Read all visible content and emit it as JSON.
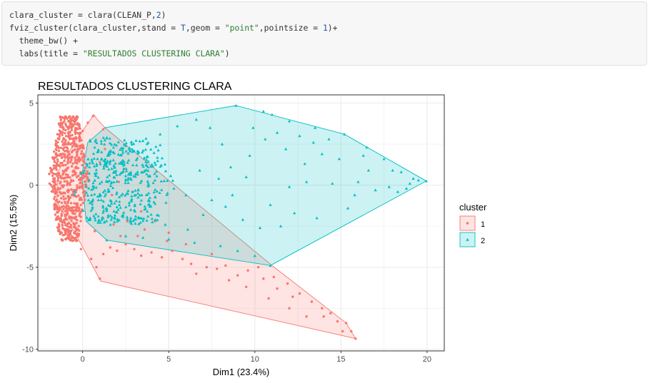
{
  "code": {
    "lines": [
      [
        {
          "t": "txt",
          "v": "clara_cluster = clara(CLEAN_P,"
        },
        {
          "t": "num",
          "v": "2"
        },
        {
          "t": "txt",
          "v": ")"
        }
      ],
      [
        {
          "t": "txt",
          "v": "fviz_cluster(clara_cluster,stand = "
        },
        {
          "t": "kw",
          "v": "T"
        },
        {
          "t": "txt",
          "v": ",geom = "
        },
        {
          "t": "str",
          "v": "\"point\""
        },
        {
          "t": "txt",
          "v": ",pointsize = "
        },
        {
          "t": "num",
          "v": "1"
        },
        {
          "t": "txt",
          "v": ")+"
        }
      ],
      [
        {
          "t": "txt",
          "v": "  theme_bw() +"
        }
      ],
      [
        {
          "t": "txt",
          "v": "  labs(title = "
        },
        {
          "t": "str",
          "v": "\"RESULTADOS CLUSTERING CLARA\""
        },
        {
          "t": "txt",
          "v": ")"
        }
      ]
    ]
  },
  "chart_data": {
    "type": "scatter",
    "title": "RESULTADOS CLUSTERING CLARA",
    "xlabel": "Dim1 (23.4%)",
    "ylabel": "Dim2 (15.5%)",
    "xlim": [
      -2.6,
      21.0
    ],
    "ylim": [
      -10.1,
      5.5
    ],
    "xticks": [
      0,
      5,
      10,
      15,
      20
    ],
    "yticks": [
      -10,
      -5,
      0,
      5
    ],
    "grid": true,
    "legend_title": "cluster",
    "legend_position": "right",
    "series": [
      {
        "name": "1",
        "color": "#F8766D",
        "fill": "#F8766D",
        "marker": "circle",
        "hull": [
          [
            0.65,
            4.3
          ],
          [
            0.85,
            4.0
          ],
          [
            1.3,
            3.5
          ],
          [
            11.0,
            -4.9
          ],
          [
            15.3,
            -8.4
          ],
          [
            15.85,
            -9.35
          ],
          [
            1.05,
            -5.85
          ],
          [
            -0.3,
            -3.2
          ],
          [
            -1.5,
            -1.0
          ],
          [
            -1.45,
            0.8
          ],
          [
            -0.5,
            2.55
          ]
        ],
        "points": [
          [
            0.6,
            4.2
          ],
          [
            0.3,
            3.8
          ],
          [
            0.0,
            3.3
          ],
          [
            -0.2,
            2.9
          ],
          [
            -0.5,
            2.5
          ],
          [
            1.2,
            3.4
          ],
          [
            -1.45,
            0.7
          ],
          [
            -1.5,
            -0.9
          ],
          [
            -0.3,
            -3.1
          ],
          [
            1.0,
            -5.7
          ],
          [
            0.5,
            -4.5
          ],
          [
            0.8,
            -5.0
          ],
          [
            1.2,
            -4.2
          ],
          [
            1.6,
            -3.8
          ],
          [
            2.0,
            -4.0
          ],
          [
            2.5,
            -3.6
          ],
          [
            3.0,
            -3.9
          ],
          [
            3.4,
            -4.3
          ],
          [
            4.0,
            -4.1
          ],
          [
            4.6,
            -4.4
          ],
          [
            5.2,
            -4.0
          ],
          [
            5.8,
            -4.5
          ],
          [
            6.3,
            -4.8
          ],
          [
            6.6,
            -5.4
          ],
          [
            7.2,
            -5.0
          ],
          [
            7.8,
            -5.1
          ],
          [
            8.3,
            -4.9
          ],
          [
            9.0,
            -5.5
          ],
          [
            9.6,
            -5.2
          ],
          [
            10.2,
            -5.0
          ],
          [
            10.5,
            -5.7
          ],
          [
            11.1,
            -5.6
          ],
          [
            11.3,
            -6.3
          ],
          [
            11.9,
            -6.0
          ],
          [
            12.2,
            -6.8
          ],
          [
            12.6,
            -6.6
          ],
          [
            13.3,
            -7.1
          ],
          [
            13.9,
            -7.5
          ],
          [
            14.0,
            -8.0
          ],
          [
            14.4,
            -7.8
          ],
          [
            14.8,
            -8.3
          ],
          [
            15.3,
            -8.4
          ],
          [
            15.6,
            -8.9
          ],
          [
            15.85,
            -9.35
          ],
          [
            15.1,
            -8.9
          ],
          [
            3.2,
            -3.1
          ],
          [
            6.0,
            -3.6
          ],
          [
            7.5,
            -4.2
          ],
          [
            2.2,
            -3.1
          ],
          [
            4.9,
            -3.4
          ],
          [
            1.8,
            -2.4
          ],
          [
            2.6,
            -2.2
          ],
          [
            3.6,
            -2.7
          ],
          [
            5.0,
            -2.9
          ],
          [
            1.4,
            -1.5
          ],
          [
            1.7,
            -0.6
          ],
          [
            2.1,
            0.2
          ],
          [
            1.0,
            1.4
          ],
          [
            1.3,
            2.2
          ],
          [
            2.4,
            1.0
          ],
          [
            2.9,
            -0.4
          ],
          [
            3.4,
            -1.6
          ],
          [
            4.2,
            -2.2
          ],
          [
            0.7,
            -2.8
          ],
          [
            -0.1,
            -3.9
          ],
          [
            9.5,
            -6.2
          ],
          [
            13.0,
            -8.0
          ],
          [
            12.0,
            -7.5
          ],
          [
            8.5,
            -5.8
          ],
          [
            10.8,
            -6.9
          ]
        ],
        "dense_region": {
          "x_center": -0.8,
          "y_top": 4.2,
          "y_bottom": -3.4
        }
      },
      {
        "name": "2",
        "color": "#00BFC4",
        "fill": "#00BFC4",
        "marker": "triangle",
        "hull": [
          [
            1.3,
            3.5
          ],
          [
            8.9,
            4.85
          ],
          [
            15.2,
            3.1
          ],
          [
            19.95,
            0.25
          ],
          [
            10.9,
            -4.9
          ],
          [
            1.4,
            -3.35
          ],
          [
            0.2,
            -2.2
          ],
          [
            -0.05,
            0.6
          ],
          [
            0.3,
            2.6
          ]
        ],
        "points": [
          [
            8.9,
            4.85
          ],
          [
            10.5,
            4.5
          ],
          [
            11.0,
            4.3
          ],
          [
            12.0,
            3.9
          ],
          [
            13.5,
            3.5
          ],
          [
            15.2,
            3.1
          ],
          [
            16.5,
            2.3
          ],
          [
            17.5,
            1.6
          ],
          [
            18.5,
            0.8
          ],
          [
            19.2,
            0.4
          ],
          [
            19.95,
            0.25
          ],
          [
            18.8,
            -0.2
          ],
          [
            18.3,
            -0.4
          ],
          [
            19.0,
            0.1
          ],
          [
            16.0,
            0.2
          ],
          [
            14.5,
            0.1
          ],
          [
            13.0,
            0.2
          ],
          [
            12.0,
            -0.1
          ],
          [
            11.5,
            -2.5
          ],
          [
            10.3,
            -2.6
          ],
          [
            9.3,
            -2.1
          ],
          [
            8.3,
            -1.3
          ],
          [
            7.5,
            -0.9
          ],
          [
            9.0,
            -4.0
          ],
          [
            10.0,
            -4.3
          ],
          [
            10.9,
            -4.9
          ],
          [
            8.0,
            -3.7
          ],
          [
            6.5,
            -3.5
          ],
          [
            5.0,
            -3.3
          ],
          [
            3.5,
            -3.2
          ],
          [
            2.5,
            -3.1
          ],
          [
            1.4,
            -3.35
          ],
          [
            7.0,
            -1.8
          ],
          [
            6.0,
            -0.6
          ],
          [
            8.6,
            1.1
          ],
          [
            9.7,
            1.8
          ],
          [
            10.6,
            2.8
          ],
          [
            11.8,
            2.2
          ],
          [
            12.9,
            1.3
          ],
          [
            13.9,
            1.9
          ],
          [
            14.9,
            1.6
          ],
          [
            16.6,
            0.9
          ],
          [
            17.8,
            -0.1
          ],
          [
            15.4,
            -1.4
          ],
          [
            13.6,
            -2.0
          ],
          [
            12.3,
            -1.7
          ],
          [
            10.9,
            -1.2
          ],
          [
            9.5,
            0.5
          ],
          [
            8.1,
            2.5
          ],
          [
            7.4,
            3.5
          ],
          [
            6.6,
            4.0
          ],
          [
            5.5,
            3.6
          ],
          [
            4.5,
            3.1
          ],
          [
            3.5,
            2.7
          ],
          [
            2.5,
            2.4
          ],
          [
            1.6,
            1.9
          ],
          [
            2.3,
            1.3
          ],
          [
            3.1,
            0.7
          ],
          [
            4.2,
            0.3
          ],
          [
            5.3,
            -0.2
          ],
          [
            6.8,
            0.9
          ],
          [
            7.9,
            0.4
          ],
          [
            8.7,
            -0.6
          ],
          [
            3.9,
            -1.3
          ],
          [
            2.8,
            -2.0
          ],
          [
            4.8,
            -2.4
          ],
          [
            6.1,
            -2.7
          ],
          [
            0.4,
            1.1
          ],
          [
            0.7,
            2.3
          ],
          [
            1.0,
            0.1
          ],
          [
            9.9,
            3.5
          ],
          [
            11.3,
            3.2
          ],
          [
            12.6,
            3.0
          ],
          [
            13.4,
            2.6
          ],
          [
            14.3,
            2.8
          ],
          [
            17.0,
            -0.3
          ],
          [
            18.0,
            0.9
          ],
          [
            19.5,
            0.3
          ],
          [
            16.3,
            1.8
          ],
          [
            15.8,
            -0.6
          ]
        ],
        "dense_region": {
          "x_center": 1.8,
          "y_top": 2.9,
          "y_bottom": -2.4
        }
      }
    ]
  }
}
